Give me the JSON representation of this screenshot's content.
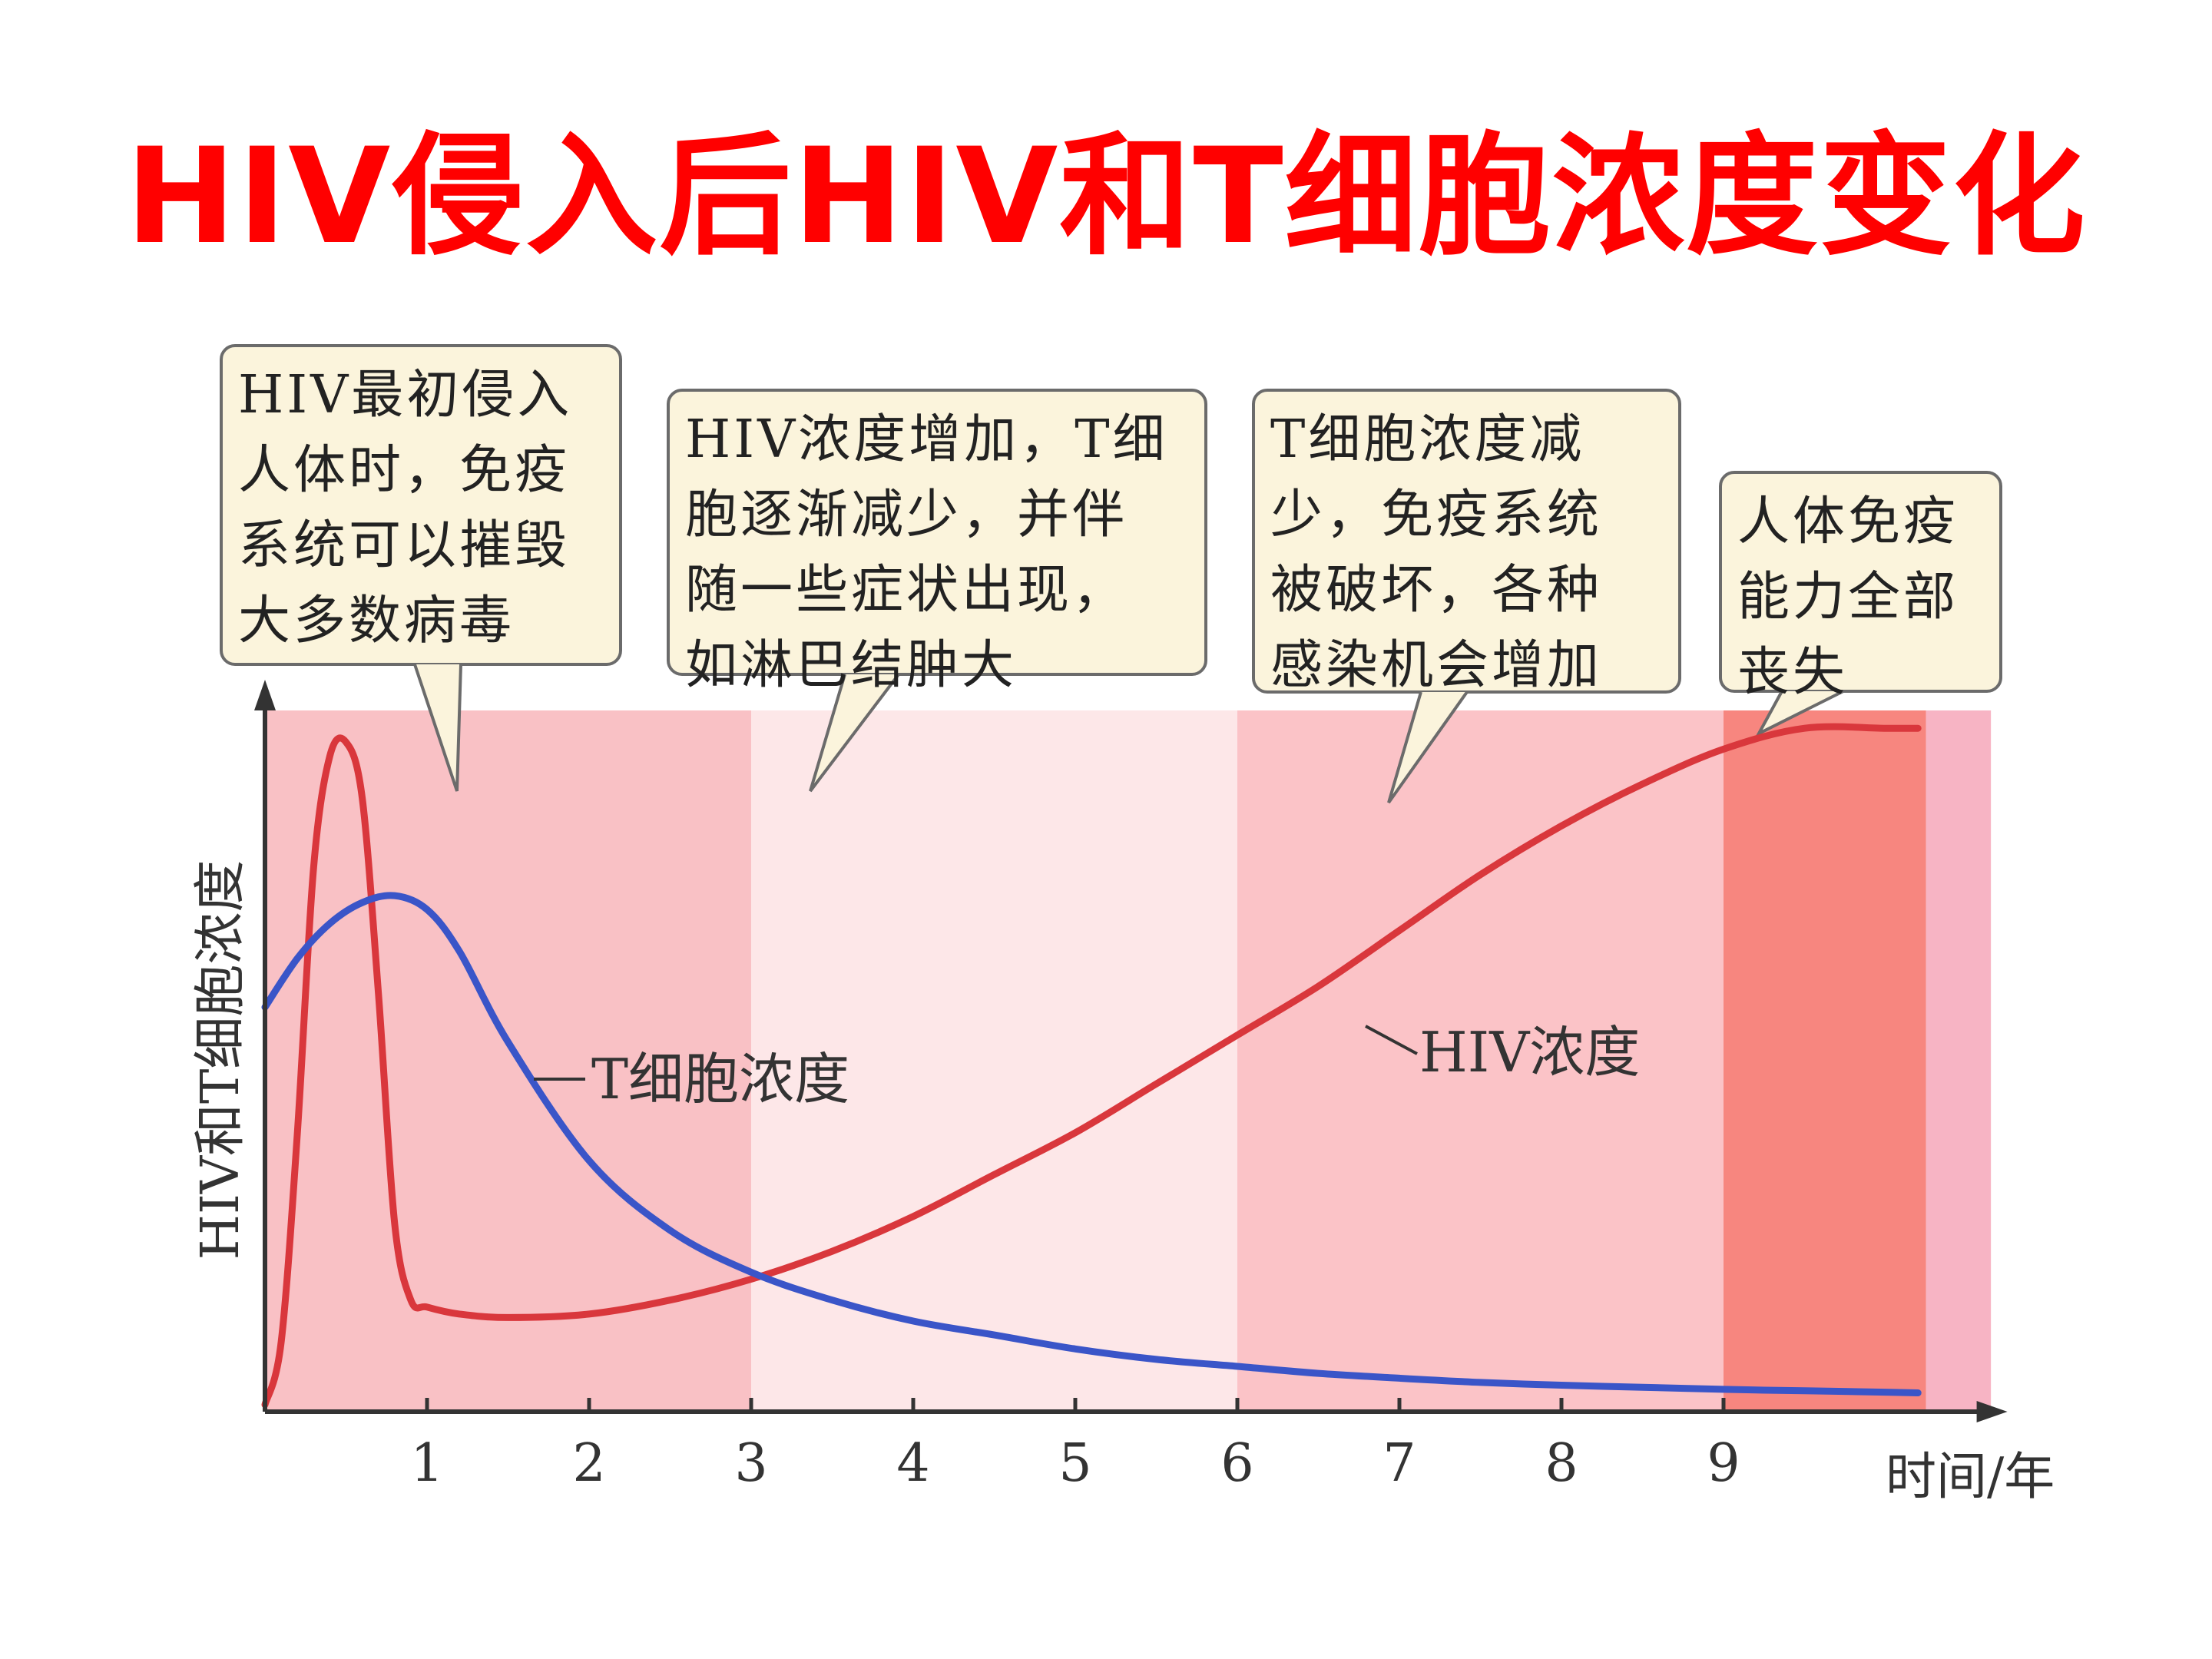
{
  "title": "HIV侵入后HIV和T细胞浓度变化",
  "colors": {
    "title": "#ff0000",
    "hiv_line": "#d9373c",
    "tcell_line": "#3a55c8",
    "callout_fill": "#fbf4dc",
    "callout_border": "#6b6b6b",
    "axis": "#333333",
    "phase_fills": [
      "#f9c1c5",
      "#fde7e8",
      "#fbc3c7",
      "#f7867f",
      "#f7b4c4"
    ]
  },
  "callouts": [
    {
      "text": "HIV最初侵入\n人体时，免疫\n系统可以摧毁\n大多数病毒"
    },
    {
      "text": "HIV浓度增加，T细\n胞逐渐减少，并伴\n随一些症状出现，\n如淋巴结肿大"
    },
    {
      "text": "T细胞浓度减\n少，免疫系统\n被破坏，各种\n感染机会增加"
    },
    {
      "text": "人体免疫\n能力全部\n丧失"
    }
  ],
  "chart_data": {
    "type": "line",
    "title": "HIV侵入后HIV和T细胞浓度变化",
    "xlabel": "时间/年",
    "ylabel": "HIV和T细胞浓度",
    "xlim": [
      0,
      10.6
    ],
    "ylim": [
      0,
      1
    ],
    "x_ticks": [
      1,
      2,
      3,
      4,
      5,
      6,
      7,
      8,
      9
    ],
    "y_ticks_shown": false,
    "phases": [
      {
        "from": 0,
        "to": 3
      },
      {
        "from": 3,
        "to": 6
      },
      {
        "from": 6,
        "to": 9
      },
      {
        "from": 9,
        "to": 10.25
      },
      {
        "from": 10.25,
        "to": 10.65
      }
    ],
    "series": [
      {
        "name": "HIV浓度",
        "x": [
          0,
          0.1,
          0.2,
          0.3,
          0.4,
          0.5,
          0.6,
          0.7,
          0.8,
          0.9,
          1.0,
          1.2,
          1.5,
          2.0,
          2.5,
          3.0,
          3.5,
          4.0,
          4.5,
          5.0,
          5.5,
          6.0,
          6.5,
          7.0,
          7.5,
          8.0,
          8.5,
          9.0,
          9.5,
          10.0,
          10.2
        ],
        "values": [
          0.01,
          0.1,
          0.4,
          0.78,
          0.94,
          0.96,
          0.88,
          0.6,
          0.27,
          0.16,
          0.15,
          0.14,
          0.135,
          0.14,
          0.16,
          0.19,
          0.23,
          0.28,
          0.34,
          0.4,
          0.47,
          0.54,
          0.61,
          0.69,
          0.77,
          0.84,
          0.9,
          0.95,
          0.98,
          0.98,
          0.98
        ]
      },
      {
        "name": "T细胞浓度",
        "x": [
          0,
          0.2,
          0.4,
          0.6,
          0.8,
          1.0,
          1.2,
          1.5,
          2.0,
          2.5,
          3.0,
          3.5,
          4.0,
          4.5,
          5.0,
          5.5,
          6.0,
          6.5,
          7.0,
          7.5,
          8.0,
          8.5,
          9.0,
          9.5,
          10.0,
          10.2
        ],
        "values": [
          0.58,
          0.65,
          0.7,
          0.73,
          0.74,
          0.72,
          0.66,
          0.53,
          0.36,
          0.26,
          0.2,
          0.16,
          0.13,
          0.11,
          0.09,
          0.075,
          0.065,
          0.055,
          0.048,
          0.042,
          0.038,
          0.035,
          0.032,
          0.03,
          0.028,
          0.027
        ]
      }
    ]
  }
}
